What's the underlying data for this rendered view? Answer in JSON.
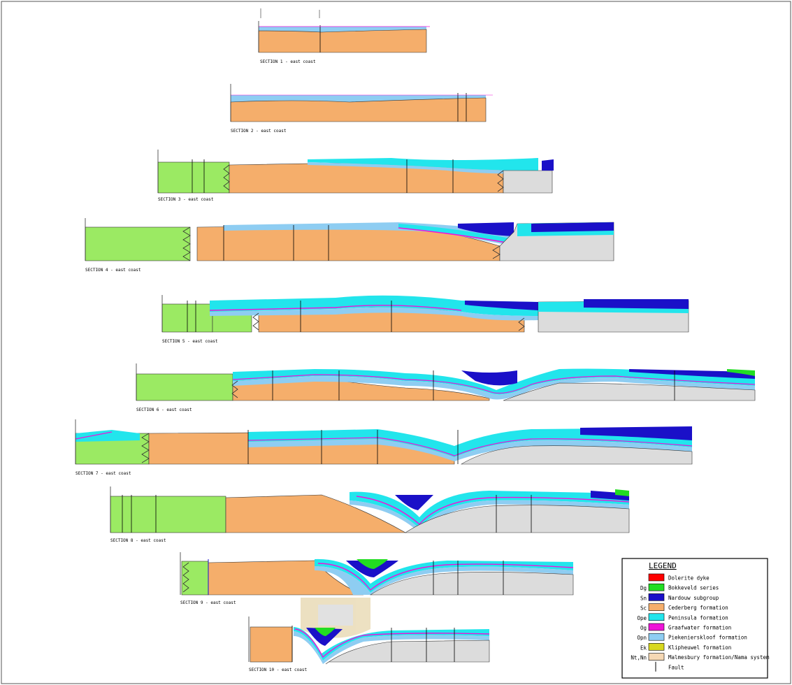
{
  "sections": [
    {
      "label": "SECTION 1 - east coast"
    },
    {
      "label": "SECTION 2 - east coast"
    },
    {
      "label": "SECTION 3 - east coast"
    },
    {
      "label": "SECTION 4 - east coast"
    },
    {
      "label": "SECTION 5 - east coast"
    },
    {
      "label": "SECTION 6 - east coast"
    },
    {
      "label": "SECTION 7 - east coast"
    },
    {
      "label": "SECTION 8 - east coast"
    },
    {
      "label": "SECTION 9 - east coast"
    },
    {
      "label": "SECTION 10 - east coast"
    }
  ],
  "legend": {
    "title": "LEGEND",
    "items": [
      {
        "code": "",
        "label": "Dolerite dyke",
        "color": "#ff0000"
      },
      {
        "code": "Dg",
        "label": "Bokkeveld series",
        "color": "#22dd22"
      },
      {
        "code": "Sn",
        "label": "Nardouw subgroup",
        "color": "#1a10c8"
      },
      {
        "code": "Sc",
        "label": "Cederberg formation",
        "color": "#f5ae6b"
      },
      {
        "code": "Ope",
        "label": "Peninsula formation",
        "color": "#22e5ec"
      },
      {
        "code": "Og",
        "label": "Graafwater formation",
        "color": "#ee14d8"
      },
      {
        "code": "Opn",
        "label": "Piekenierskloof formation",
        "color": "#8ecdf2"
      },
      {
        "code": "Ek",
        "label": "Klipheuwel formation",
        "color": "#d8d81e"
      },
      {
        "code": "Nt,Nn",
        "label": "Malmesbury formation/Nama system",
        "color": "#f5d8b4"
      },
      {
        "code": "",
        "label": "Fault",
        "color": "#000000"
      }
    ]
  },
  "colors": {
    "basement": "#9bea63",
    "sandstone": "#f5ae6b",
    "peninsula": "#22e5ec",
    "piekenierskloof": "#8ecdf2",
    "graafwater": "#ee14d8",
    "nardouw": "#1a10c8",
    "bokkeveld": "#22dd22",
    "granite": "#dcdcdc"
  }
}
